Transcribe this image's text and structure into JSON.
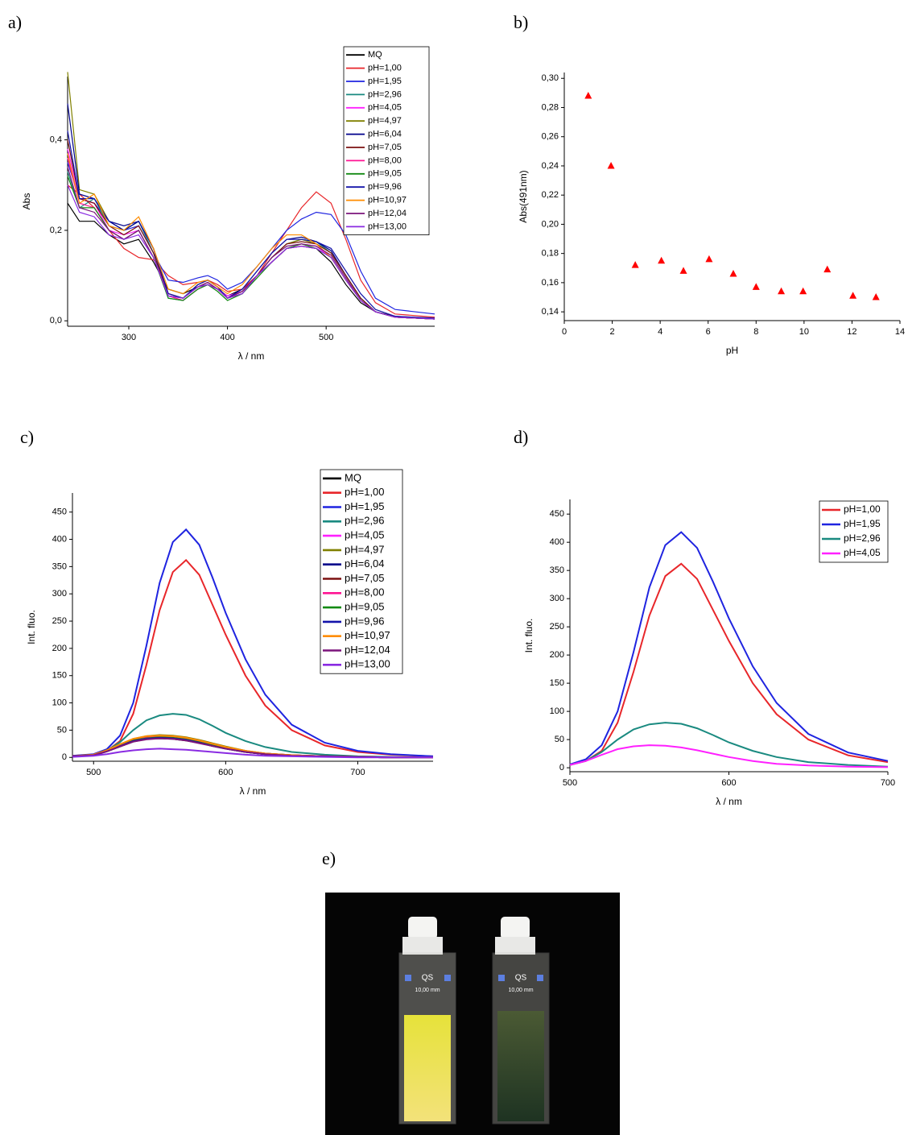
{
  "chart_data": [
    {
      "type": "line",
      "label": "a)",
      "xlabel": "λ / nm",
      "ylabel": "Abs",
      "legend": "upper right",
      "xlim": [
        238,
        610
      ],
      "ylim": [
        -0.012,
        0.54
      ],
      "xticks": [
        300,
        400,
        500
      ],
      "yticks": [
        {
          "value": 0,
          "label": "0,0"
        },
        {
          "value": 0.2,
          "label": "0,2"
        },
        {
          "value": 0.4,
          "label": "0,4"
        }
      ],
      "x": [
        238,
        250,
        265,
        280,
        295,
        310,
        325,
        340,
        355,
        370,
        380,
        390,
        400,
        415,
        430,
        445,
        460,
        475,
        490,
        505,
        520,
        535,
        550,
        570,
        610
      ],
      "series": [
        {
          "name": "MQ",
          "color": "#000000",
          "values": [
            0.26,
            0.22,
            0.22,
            0.19,
            0.17,
            0.18,
            0.13,
            0.07,
            0.06,
            0.075,
            0.08,
            0.07,
            0.055,
            0.07,
            0.1,
            0.13,
            0.16,
            0.165,
            0.16,
            0.13,
            0.08,
            0.04,
            0.02,
            0.01,
            0.005
          ]
        },
        {
          "name": "pH=1,00",
          "color": "#e8262a",
          "values": [
            0.3,
            0.28,
            0.25,
            0.2,
            0.16,
            0.14,
            0.135,
            0.1,
            0.08,
            0.085,
            0.09,
            0.08,
            0.065,
            0.07,
            0.1,
            0.15,
            0.2,
            0.25,
            0.285,
            0.26,
            0.18,
            0.09,
            0.04,
            0.015,
            0.008
          ]
        },
        {
          "name": "pH=1,95",
          "color": "#1f24e0",
          "values": [
            0.35,
            0.27,
            0.26,
            0.22,
            0.2,
            0.21,
            0.15,
            0.09,
            0.085,
            0.095,
            0.1,
            0.09,
            0.07,
            0.085,
            0.12,
            0.16,
            0.2,
            0.225,
            0.24,
            0.235,
            0.19,
            0.11,
            0.05,
            0.025,
            0.015
          ]
        },
        {
          "name": "pH=2,96",
          "color": "#1a8a80",
          "values": [
            0.33,
            0.25,
            0.27,
            0.21,
            0.2,
            0.22,
            0.15,
            0.05,
            0.045,
            0.07,
            0.08,
            0.07,
            0.05,
            0.06,
            0.1,
            0.14,
            0.17,
            0.18,
            0.175,
            0.15,
            0.1,
            0.05,
            0.02,
            0.008,
            0.004
          ]
        },
        {
          "name": "pH=4,05",
          "color": "#ff20ff",
          "values": [
            0.38,
            0.27,
            0.26,
            0.2,
            0.19,
            0.2,
            0.14,
            0.06,
            0.05,
            0.075,
            0.085,
            0.07,
            0.055,
            0.065,
            0.1,
            0.13,
            0.16,
            0.17,
            0.165,
            0.14,
            0.09,
            0.045,
            0.02,
            0.008,
            0.004
          ]
        },
        {
          "name": "pH=4,97",
          "color": "#808000",
          "values": [
            0.55,
            0.29,
            0.28,
            0.22,
            0.21,
            0.22,
            0.16,
            0.06,
            0.05,
            0.08,
            0.09,
            0.075,
            0.05,
            0.065,
            0.1,
            0.14,
            0.17,
            0.18,
            0.17,
            0.15,
            0.1,
            0.05,
            0.02,
            0.008,
            0.004
          ]
        },
        {
          "name": "pH=6,04",
          "color": "#00008b",
          "values": [
            0.48,
            0.28,
            0.27,
            0.22,
            0.2,
            0.22,
            0.16,
            0.06,
            0.05,
            0.08,
            0.09,
            0.075,
            0.05,
            0.07,
            0.11,
            0.15,
            0.18,
            0.185,
            0.175,
            0.155,
            0.1,
            0.05,
            0.02,
            0.008,
            0.004
          ]
        },
        {
          "name": "pH=7,05",
          "color": "#7b1010",
          "values": [
            0.4,
            0.27,
            0.26,
            0.21,
            0.19,
            0.21,
            0.15,
            0.06,
            0.05,
            0.075,
            0.085,
            0.07,
            0.05,
            0.065,
            0.1,
            0.14,
            0.17,
            0.175,
            0.17,
            0.15,
            0.1,
            0.05,
            0.02,
            0.008,
            0.004
          ]
        },
        {
          "name": "pH=8,00",
          "color": "#ff1493",
          "values": [
            0.36,
            0.26,
            0.25,
            0.2,
            0.18,
            0.2,
            0.14,
            0.055,
            0.045,
            0.07,
            0.08,
            0.07,
            0.05,
            0.06,
            0.1,
            0.13,
            0.16,
            0.165,
            0.16,
            0.14,
            0.09,
            0.045,
            0.02,
            0.008,
            0.004
          ]
        },
        {
          "name": "pH=9,05",
          "color": "#138a13",
          "values": [
            0.32,
            0.25,
            0.25,
            0.2,
            0.18,
            0.2,
            0.14,
            0.05,
            0.045,
            0.07,
            0.08,
            0.065,
            0.045,
            0.06,
            0.095,
            0.13,
            0.16,
            0.17,
            0.16,
            0.14,
            0.09,
            0.045,
            0.02,
            0.008,
            0.004
          ]
        },
        {
          "name": "pH=9,96",
          "color": "#1414aa",
          "values": [
            0.42,
            0.27,
            0.27,
            0.22,
            0.21,
            0.22,
            0.16,
            0.06,
            0.05,
            0.08,
            0.09,
            0.075,
            0.05,
            0.07,
            0.11,
            0.15,
            0.18,
            0.18,
            0.175,
            0.16,
            0.11,
            0.06,
            0.025,
            0.01,
            0.006
          ]
        },
        {
          "name": "pH=10,97",
          "color": "#ff8c00",
          "values": [
            0.37,
            0.26,
            0.28,
            0.21,
            0.2,
            0.23,
            0.16,
            0.07,
            0.06,
            0.085,
            0.09,
            0.075,
            0.06,
            0.08,
            0.12,
            0.16,
            0.19,
            0.19,
            0.17,
            0.14,
            0.09,
            0.045,
            0.02,
            0.008,
            0.004
          ]
        },
        {
          "name": "pH=12,04",
          "color": "#7b147b",
          "values": [
            0.34,
            0.25,
            0.24,
            0.2,
            0.18,
            0.2,
            0.14,
            0.055,
            0.05,
            0.075,
            0.085,
            0.07,
            0.05,
            0.065,
            0.1,
            0.14,
            0.165,
            0.17,
            0.165,
            0.145,
            0.095,
            0.045,
            0.02,
            0.008,
            0.004
          ]
        },
        {
          "name": "pH=13,00",
          "color": "#8a2be2",
          "values": [
            0.3,
            0.24,
            0.23,
            0.19,
            0.18,
            0.19,
            0.14,
            0.055,
            0.05,
            0.075,
            0.08,
            0.07,
            0.05,
            0.06,
            0.1,
            0.13,
            0.16,
            0.165,
            0.16,
            0.14,
            0.09,
            0.045,
            0.02,
            0.008,
            0.004
          ]
        }
      ]
    },
    {
      "type": "scatter",
      "label": "b)",
      "xlabel": "pH",
      "ylabel": "Abs(491nm)",
      "xlim": [
        0,
        14
      ],
      "ylim": [
        0.134,
        0.304
      ],
      "xticks": [
        0,
        2,
        4,
        6,
        8,
        10,
        12,
        14
      ],
      "yticks": [
        {
          "value": 0.14,
          "label": "0,14"
        },
        {
          "value": 0.16,
          "label": "0,16"
        },
        {
          "value": 0.18,
          "label": "0,18"
        },
        {
          "value": 0.2,
          "label": "0,20"
        },
        {
          "value": 0.22,
          "label": "0,22"
        },
        {
          "value": 0.24,
          "label": "0,24"
        },
        {
          "value": 0.26,
          "label": "0,26"
        },
        {
          "value": 0.28,
          "label": "0,28"
        },
        {
          "value": 0.3,
          "label": "0,30"
        }
      ],
      "series": [
        {
          "marker": "triangle",
          "color": "#ff0000",
          "x": [
            1.0,
            1.95,
            2.96,
            4.05,
            4.97,
            6.04,
            7.05,
            8.0,
            9.05,
            9.96,
            10.97,
            12.04,
            13.0
          ],
          "values": [
            0.288,
            0.24,
            0.172,
            0.175,
            0.168,
            0.176,
            0.166,
            0.157,
            0.154,
            0.154,
            0.169,
            0.151,
            0.15
          ]
        }
      ]
    },
    {
      "type": "line",
      "label": "c)",
      "xlabel": "λ / nm",
      "ylabel": "Int. fluo.",
      "legend": "upper right",
      "xlim": [
        484,
        757
      ],
      "ylim": [
        -7,
        485
      ],
      "xticks": [
        500,
        600,
        700
      ],
      "yticks": [
        0,
        50,
        100,
        150,
        200,
        250,
        300,
        350,
        400,
        450
      ],
      "x": [
        484,
        500,
        510,
        520,
        530,
        540,
        550,
        560,
        570,
        580,
        590,
        600,
        615,
        630,
        650,
        675,
        700,
        725,
        757
      ],
      "series": [
        {
          "name": "MQ",
          "color": "#000000",
          "values": [
            2,
            4,
            11,
            20,
            29,
            34,
            35,
            34,
            31,
            27,
            21,
            16,
            10,
            6,
            3,
            2,
            1,
            0,
            0
          ]
        },
        {
          "name": "pH=1,00",
          "color": "#e8262a",
          "values": [
            3,
            5,
            12,
            30,
            80,
            170,
            270,
            340,
            362,
            335,
            280,
            225,
            150,
            95,
            50,
            22,
            10,
            5,
            2
          ]
        },
        {
          "name": "pH=1,95",
          "color": "#1f24e0",
          "values": [
            3,
            6,
            15,
            40,
            100,
            205,
            320,
            395,
            418,
            390,
            330,
            265,
            180,
            115,
            60,
            27,
            12,
            6,
            2
          ]
        },
        {
          "name": "pH=2,96",
          "color": "#1a8a80",
          "values": [
            2,
            5,
            12,
            28,
            50,
            68,
            77,
            80,
            78,
            70,
            58,
            45,
            30,
            19,
            10,
            5,
            2,
            1,
            0
          ]
        },
        {
          "name": "pH=4,05",
          "color": "#ff20ff",
          "values": [
            2,
            5,
            12,
            23,
            33,
            38,
            40,
            39,
            36,
            31,
            25,
            19,
            12,
            7,
            4,
            2,
            1,
            0,
            0
          ]
        },
        {
          "name": "pH=4,97",
          "color": "#808000",
          "values": [
            2,
            5,
            13,
            24,
            34,
            39,
            41,
            40,
            37,
            32,
            26,
            20,
            12,
            7,
            4,
            2,
            1,
            0,
            0
          ]
        },
        {
          "name": "pH=6,04",
          "color": "#00008b",
          "values": [
            2,
            5,
            12,
            22,
            31,
            36,
            37,
            36,
            33,
            28,
            22,
            17,
            11,
            6,
            3,
            2,
            1,
            0,
            0
          ]
        },
        {
          "name": "pH=7,05",
          "color": "#7b1010",
          "values": [
            2,
            5,
            12,
            23,
            32,
            37,
            38,
            37,
            34,
            29,
            23,
            18,
            11,
            7,
            4,
            2,
            1,
            0,
            0
          ]
        },
        {
          "name": "pH=8,00",
          "color": "#ff1493",
          "values": [
            2,
            5,
            12,
            22,
            31,
            36,
            38,
            37,
            34,
            29,
            23,
            17,
            11,
            6,
            3,
            2,
            1,
            0,
            0
          ]
        },
        {
          "name": "pH=9,05",
          "color": "#138a13",
          "values": [
            2,
            5,
            12,
            22,
            31,
            35,
            37,
            36,
            33,
            28,
            22,
            17,
            10,
            6,
            3,
            2,
            1,
            0,
            0
          ]
        },
        {
          "name": "pH=9,96",
          "color": "#1414aa",
          "values": [
            2,
            4,
            11,
            21,
            30,
            34,
            36,
            35,
            32,
            27,
            21,
            16,
            10,
            6,
            3,
            2,
            1,
            0,
            0
          ]
        },
        {
          "name": "pH=10,97",
          "color": "#ff8c00",
          "values": [
            2,
            5,
            13,
            24,
            34,
            39,
            40,
            39,
            36,
            31,
            25,
            19,
            12,
            7,
            4,
            2,
            1,
            0,
            0
          ]
        },
        {
          "name": "pH=12,04",
          "color": "#7b147b",
          "values": [
            2,
            4,
            11,
            20,
            29,
            33,
            35,
            34,
            31,
            26,
            21,
            16,
            10,
            6,
            3,
            2,
            1,
            0,
            0
          ]
        },
        {
          "name": "pH=13,00",
          "color": "#8a2be2",
          "values": [
            1,
            3,
            6,
            10,
            13,
            15,
            16,
            15,
            14,
            12,
            10,
            8,
            5,
            3,
            2,
            1,
            0,
            0,
            0
          ]
        }
      ]
    },
    {
      "type": "line",
      "label": "d)",
      "xlabel": "λ / nm",
      "ylabel": "Int. fluo.",
      "legend": "upper right",
      "xlim": [
        500,
        700
      ],
      "ylim": [
        -7,
        476
      ],
      "xticks": [
        500,
        600,
        700
      ],
      "yticks": [
        0,
        50,
        100,
        150,
        200,
        250,
        300,
        350,
        400,
        450
      ],
      "x": [
        500,
        510,
        520,
        530,
        540,
        550,
        560,
        570,
        580,
        590,
        600,
        615,
        630,
        650,
        675,
        700
      ],
      "series": [
        {
          "name": "pH=1,00",
          "color": "#e8262a",
          "values": [
            5,
            12,
            30,
            80,
            170,
            270,
            340,
            362,
            335,
            280,
            225,
            150,
            95,
            50,
            22,
            10
          ]
        },
        {
          "name": "pH=1,95",
          "color": "#1f24e0",
          "values": [
            6,
            15,
            40,
            100,
            205,
            320,
            395,
            418,
            390,
            330,
            265,
            180,
            115,
            60,
            27,
            12
          ]
        },
        {
          "name": "pH=2,96",
          "color": "#1a8a80",
          "values": [
            5,
            12,
            28,
            50,
            68,
            77,
            80,
            78,
            70,
            58,
            45,
            30,
            19,
            10,
            5,
            2
          ]
        },
        {
          "name": "pH=4,05",
          "color": "#ff20ff",
          "values": [
            5,
            12,
            23,
            33,
            38,
            40,
            39,
            36,
            31,
            25,
            19,
            12,
            7,
            4,
            2,
            1
          ]
        }
      ]
    }
  ],
  "photo": {
    "label": "e)",
    "texts": [
      "QS",
      "10,00 mm",
      "QS",
      "10,00 mm"
    ]
  }
}
